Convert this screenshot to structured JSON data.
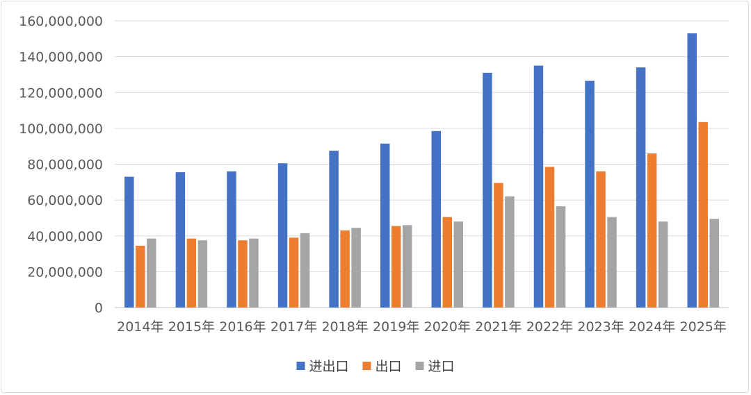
{
  "chart_data": {
    "type": "bar",
    "title": "",
    "xlabel": "",
    "ylabel": "",
    "categories": [
      "2014年",
      "2015年",
      "2016年",
      "2017年",
      "2018年",
      "2019年",
      "2020年",
      "2021年",
      "2022年",
      "2023年",
      "2024年",
      "2025年"
    ],
    "ylim": [
      0,
      160000000
    ],
    "yticks": [
      "0",
      "20,000,000",
      "40,000,000",
      "60,000,000",
      "80,000,000",
      "100,000,000",
      "120,000,000",
      "140,000,000",
      "160,000,000"
    ],
    "grid": true,
    "legend_position": "bottom",
    "series": [
      {
        "name": "进出口",
        "color": "#4472c4",
        "values": [
          73000000,
          75500000,
          76000000,
          80500000,
          87500000,
          91500000,
          98500000,
          131000000,
          135000000,
          126500000,
          134000000,
          153000000
        ]
      },
      {
        "name": "出口",
        "color": "#ed7d31",
        "values": [
          34500000,
          38500000,
          37500000,
          39000000,
          43000000,
          45500000,
          50500000,
          69500000,
          78500000,
          76000000,
          86000000,
          103500000
        ]
      },
      {
        "name": "进口",
        "color": "#a5a5a5",
        "values": [
          38500000,
          37500000,
          38500000,
          41500000,
          44500000,
          46000000,
          48000000,
          62000000,
          56500000,
          50500000,
          48000000,
          49500000
        ]
      }
    ]
  }
}
